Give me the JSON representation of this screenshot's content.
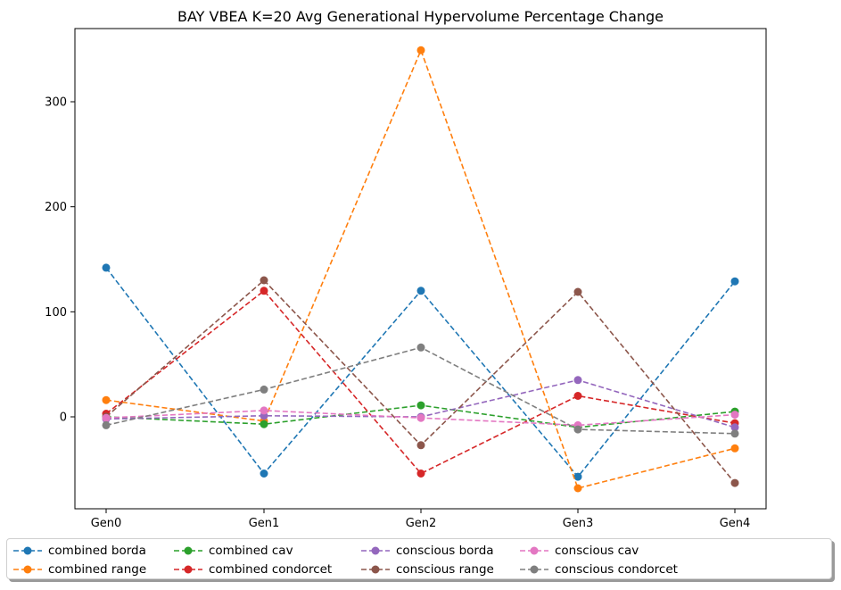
{
  "chart_data": {
    "type": "line",
    "title": "BAY VBEA K=20 Avg Generational Hypervolume Percentage Change",
    "xlabel": "",
    "ylabel": "",
    "categories": [
      "Gen0",
      "Gen1",
      "Gen2",
      "Gen3",
      "Gen4"
    ],
    "yticks": [
      "0",
      "100",
      "200",
      "300"
    ],
    "ylim": [
      -85,
      370
    ],
    "grid": false,
    "legend_position": "below plot, 5 columns",
    "series": [
      {
        "name": "combined borda",
        "color": "#1f77b4",
        "values": [
          142,
          -54,
          120,
          -57,
          129
        ]
      },
      {
        "name": "combined range",
        "color": "#ff7f0e",
        "values": [
          16,
          -4,
          349,
          -68,
          -30
        ]
      },
      {
        "name": "combined cav",
        "color": "#2ca02c",
        "values": [
          0,
          -7,
          11,
          -10,
          5
        ]
      },
      {
        "name": "combined condorcet",
        "color": "#d62728",
        "values": [
          3,
          120,
          -54,
          20,
          -6
        ]
      },
      {
        "name": "conscious borda",
        "color": "#9467bd",
        "values": [
          -2,
          1,
          0,
          35,
          -10
        ]
      },
      {
        "name": "conscious range",
        "color": "#8c564b",
        "values": [
          0,
          130,
          -27,
          119,
          -63
        ]
      },
      {
        "name": "conscious cav",
        "color": "#e377c2",
        "values": [
          -1,
          6,
          -1,
          -8,
          2
        ]
      },
      {
        "name": "conscious condorcet",
        "color": "#7f7f7f",
        "values": [
          -8,
          26,
          66,
          -12,
          -16
        ]
      }
    ]
  }
}
